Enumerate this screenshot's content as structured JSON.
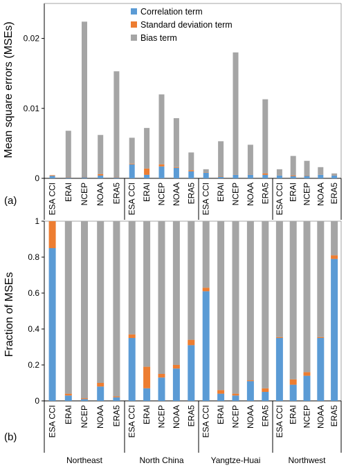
{
  "colors": {
    "correlation": "#5b9bd5",
    "std": "#ed7d31",
    "bias": "#a5a5a5"
  },
  "legend": [
    "Correlation term",
    "Standard deviation term",
    "Bias term"
  ],
  "regions": [
    "Northeast",
    "North China",
    "Yangtze-Huai",
    "Northwest"
  ],
  "products": [
    "ESA CCI",
    "ERAI",
    "NCEP",
    "NOAA",
    "ERA5"
  ],
  "chart_data": [
    {
      "type": "bar",
      "stacked": true,
      "panel_label": "(a)",
      "ylabel": "Mean square errors (MSEs)",
      "ylim": [
        0,
        0.025
      ],
      "yticks": [
        0,
        0.01,
        0.02
      ],
      "ytick_labels": [
        "0",
        "0.01",
        "0.02"
      ],
      "series": [
        {
          "name": "Correlation term",
          "values": [
            [
              0.00035,
              0.0001,
              0.00015,
              0.0004,
              0.0001
            ],
            [
              0.002,
              0.0005,
              0.0017,
              0.0015,
              0.001
            ],
            [
              0.0008,
              0.0002,
              0.0005,
              0.0005,
              0.0005
            ],
            [
              0.0004,
              0.0003,
              0.00035,
              0.0005,
              0.0004
            ]
          ]
        },
        {
          "name": "Standard deviation term",
          "values": [
            [
              0.0001,
              5e-05,
              5e-05,
              0.0002,
              5e-05
            ],
            [
              0.0001,
              0.0009,
              0.0003,
              0.0001,
              0.00015
            ],
            [
              5e-05,
              5e-05,
              3e-05,
              3e-05,
              0.0002
            ],
            [
              2e-05,
              0.0001,
              5e-05,
              2e-05,
              3e-05
            ]
          ]
        },
        {
          "name": "Bias term",
          "values": [
            [
              0.0,
              0.00665,
              0.0222,
              0.0056,
              0.01515
            ],
            [
              0.0037,
              0.0058,
              0.01,
              0.007,
              0.00255
            ],
            [
              0.00045,
              0.00505,
              0.01747,
              0.00427,
              0.0106
            ],
            [
              0.00088,
              0.0028,
              0.0021,
              0.00108,
              0.00027
            ]
          ]
        }
      ]
    },
    {
      "type": "bar",
      "stacked": true,
      "panel_label": "(b)",
      "ylabel": "Fraction of MSEs",
      "ylim": [
        0,
        1
      ],
      "yticks": [
        0,
        0.2,
        0.4,
        0.6,
        0.8,
        1
      ],
      "ytick_labels": [
        "0",
        "0.2",
        "0.4",
        "0.6",
        "0.8",
        "1"
      ],
      "series": [
        {
          "name": "Correlation term",
          "values": [
            [
              0.85,
              0.03,
              0.01,
              0.08,
              0.02
            ],
            [
              0.35,
              0.07,
              0.13,
              0.18,
              0.31
            ],
            [
              0.61,
              0.04,
              0.03,
              0.11,
              0.05
            ],
            [
              0.35,
              0.09,
              0.14,
              0.35,
              0.79
            ]
          ]
        },
        {
          "name": "Standard deviation term",
          "values": [
            [
              0.15,
              0.01,
              0.005,
              0.02,
              0.005
            ],
            [
              0.02,
              0.12,
              0.02,
              0.02,
              0.03
            ],
            [
              0.02,
              0.02,
              0.01,
              0.005,
              0.02
            ],
            [
              0.005,
              0.03,
              0.02,
              0.005,
              0.02
            ]
          ]
        },
        {
          "name": "Bias term",
          "values": [
            [
              0.0,
              0.96,
              0.985,
              0.9,
              0.975
            ],
            [
              0.63,
              0.81,
              0.85,
              0.8,
              0.66
            ],
            [
              0.37,
              0.94,
              0.96,
              0.885,
              0.93
            ],
            [
              0.645,
              0.88,
              0.84,
              0.645,
              0.19
            ]
          ]
        }
      ]
    }
  ]
}
